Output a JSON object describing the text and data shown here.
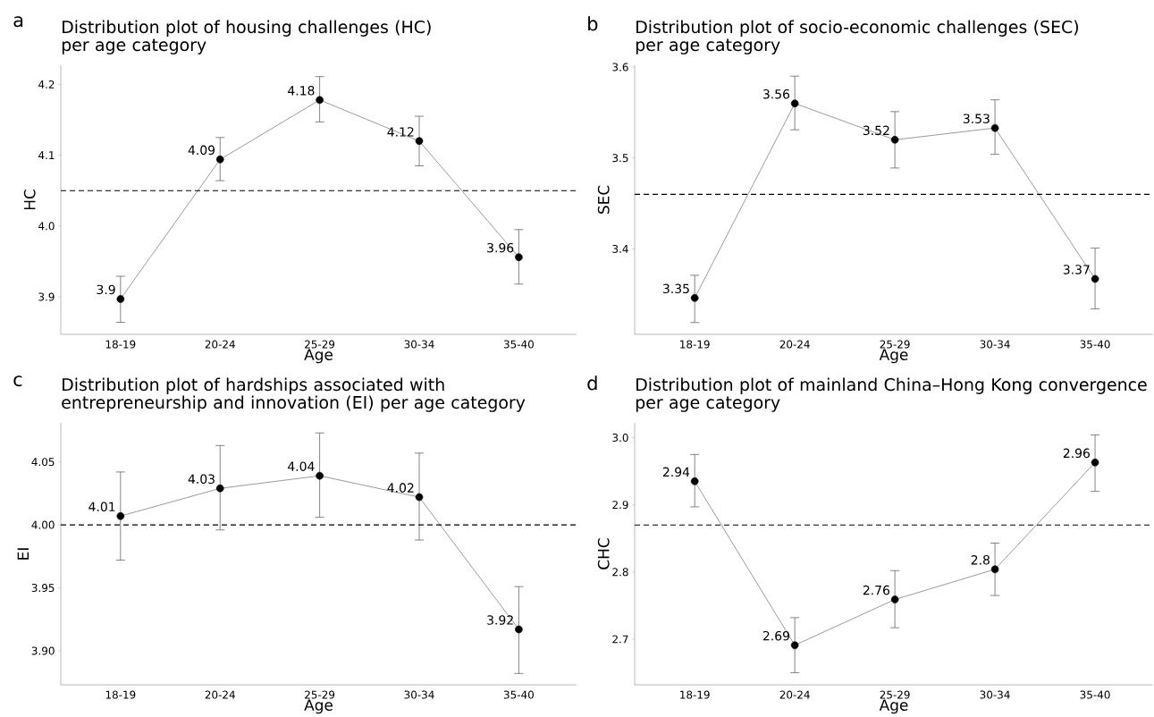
{
  "chart_data": [
    {
      "type": "line",
      "title": "Distribution plot of housing challenges (HC) per age category",
      "xlabel": "Age",
      "ylabel": "HC",
      "annotations": [
        "a"
      ],
      "categories": [
        "18-19",
        "20-24",
        "25-29",
        "30-34",
        "35-40"
      ],
      "marker": "circle",
      "series": [
        {
          "color": "#555555",
          "values": [
            3.897,
            4.094,
            4.178,
            4.12,
            3.956
          ],
          "errors": [
            [
              3.864,
              3.929
            ],
            [
              4.064,
              4.125
            ],
            [
              4.147,
              4.211
            ],
            [
              4.085,
              4.155
            ],
            [
              3.918,
              3.995
            ]
          ],
          "value_labels": [
            "3.9",
            "4.09",
            "4.18",
            "4.12",
            "3.96"
          ]
        }
      ],
      "ref_lines": [
        {
          "axis": "y",
          "value": 4.05,
          "line_style": "dashed",
          "color": "#000000"
        }
      ],
      "ylim": [
        3.847,
        4.227
      ],
      "yticks": [
        3.9,
        {
          "value": 4.0,
          "label": "4.0"
        },
        4.1,
        4.2
      ]
    },
    {
      "type": "line",
      "title": "Distribution plot of socio-economic challenges (SEC) per age category",
      "xlabel": "Age",
      "ylabel": "SEC",
      "annotations": [
        "b"
      ],
      "categories": [
        "18-19",
        "20-24",
        "25-29",
        "30-34",
        "35-40"
      ],
      "marker": "circle",
      "series": [
        {
          "color": "#555555",
          "values": [
            3.346,
            3.56,
            3.52,
            3.533,
            3.367
          ],
          "errors": [
            [
              3.319,
              3.371
            ],
            [
              3.531,
              3.59
            ],
            [
              3.489,
              3.551
            ],
            [
              3.504,
              3.564
            ],
            [
              3.334,
              3.401
            ]
          ],
          "value_labels": [
            "3.35",
            "3.56",
            "3.52",
            "3.53",
            "3.37"
          ]
        }
      ],
      "ref_lines": [
        {
          "axis": "y",
          "value": 3.46,
          "line_style": "dashed",
          "color": "#000000"
        }
      ],
      "ylim": [
        3.306,
        3.602
      ],
      "yticks": [
        3.4,
        3.5,
        3.6
      ]
    },
    {
      "type": "line",
      "title": "Distribution plot of hardships associated with entrepreneurship and innovation (EI) per age category",
      "xlabel": "Age",
      "ylabel": "EI",
      "annotations": [
        "c"
      ],
      "categories": [
        "18-19",
        "20-24",
        "25-29",
        "30-34",
        "35-40"
      ],
      "marker": "circle",
      "series": [
        {
          "color": "#555555",
          "values": [
            4.007,
            4.029,
            4.039,
            4.022,
            3.917
          ],
          "errors": [
            [
              3.972,
              4.042
            ],
            [
              3.996,
              4.063
            ],
            [
              4.006,
              4.073
            ],
            [
              3.988,
              4.057
            ],
            [
              3.882,
              3.951
            ]
          ],
          "value_labels": [
            "4.01",
            "4.03",
            "4.04",
            "4.02",
            "3.92"
          ]
        }
      ],
      "ref_lines": [
        {
          "axis": "y",
          "value": 4.0,
          "line_style": "dashed",
          "color": "#000000"
        }
      ],
      "ylim": [
        3.873,
        4.081
      ],
      "yticks": [
        {
          "value": 3.9,
          "label": "3.90"
        },
        3.95,
        {
          "value": 4.0,
          "label": "4.00"
        },
        4.05
      ]
    },
    {
      "type": "line",
      "title": "Distribution plot of mainland China–Hong Kong convergence per age category",
      "xlabel": "Age",
      "ylabel": "CHC",
      "annotations": [
        "d"
      ],
      "categories": [
        "18-19",
        "20-24",
        "25-29",
        "30-34",
        "35-40"
      ],
      "marker": "circle",
      "series": [
        {
          "color": "#555555",
          "values": [
            2.935,
            2.691,
            2.759,
            2.804,
            2.963
          ],
          "errors": [
            [
              2.897,
              2.975
            ],
            [
              2.65,
              2.732
            ],
            [
              2.717,
              2.802
            ],
            [
              2.765,
              2.843
            ],
            [
              2.92,
              3.004
            ]
          ],
          "value_labels": [
            "2.94",
            "2.69",
            "2.76",
            "2.8",
            "2.96"
          ]
        }
      ],
      "ref_lines": [
        {
          "axis": "y",
          "value": 2.87,
          "line_style": "dashed",
          "color": "#000000"
        }
      ],
      "ylim": [
        2.632,
        3.022
      ],
      "yticks": [
        2.7,
        2.8,
        2.9,
        {
          "value": 3.0,
          "label": "3.0"
        }
      ]
    }
  ]
}
